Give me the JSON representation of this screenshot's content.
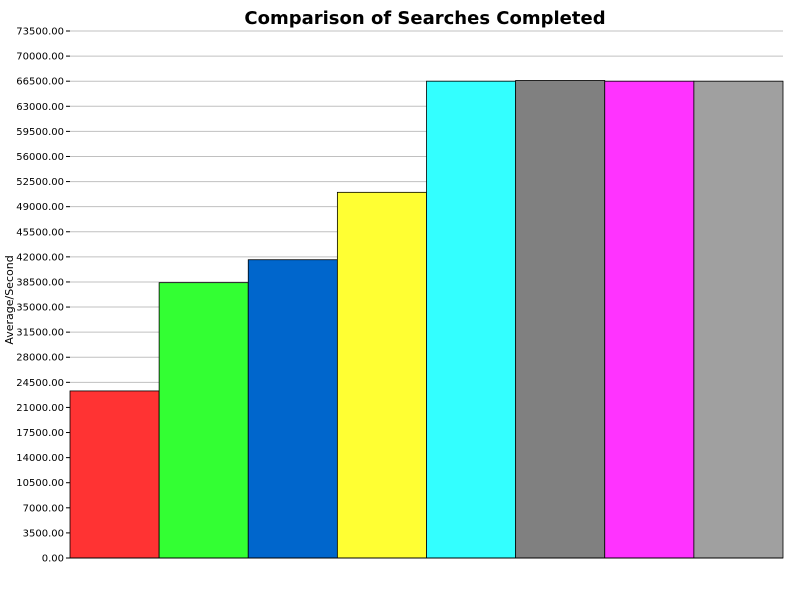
{
  "chart_data": {
    "type": "bar",
    "title": "Comparison of Searches Completed",
    "xlabel": "",
    "ylabel": "Average/Second",
    "ylim": [
      0,
      73500
    ],
    "yticks": [
      "0.00",
      "3500.00",
      "7000.00",
      "10500.00",
      "14000.00",
      "17500.00",
      "21000.00",
      "24500.00",
      "28000.00",
      "31500.00",
      "35000.00",
      "38500.00",
      "42000.00",
      "45500.00",
      "49000.00",
      "52500.00",
      "56000.00",
      "59500.00",
      "63000.00",
      "66500.00",
      "70000.00",
      "73500.00"
    ],
    "ytick_values": [
      0,
      3500,
      7000,
      10500,
      14000,
      17500,
      21000,
      24500,
      28000,
      31500,
      35000,
      38500,
      42000,
      45500,
      49000,
      52500,
      56000,
      59500,
      63000,
      66500,
      70000,
      73500
    ],
    "grid": true,
    "legend": "none",
    "values": [
      23300,
      38400,
      41600,
      51000,
      66500,
      66600,
      66500,
      66500
    ],
    "colors": [
      "#ff3333",
      "#33ff33",
      "#0066cc",
      "#ffff33",
      "#33ffff",
      "#808080",
      "#ff33ff",
      "#a0a0a0"
    ]
  }
}
